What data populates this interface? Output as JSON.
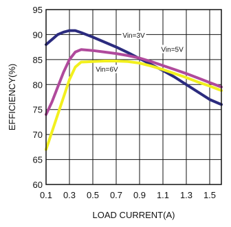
{
  "chart_data": {
    "type": "line",
    "title": "",
    "xlabel": "LOAD CURRENT(A)",
    "ylabel": "EFFICIENCY(%)",
    "xlim": [
      0.1,
      1.6
    ],
    "ylim": [
      60,
      95
    ],
    "xticks": [
      0.1,
      0.3,
      0.5,
      0.7,
      0.9,
      1.1,
      1.3,
      1.5
    ],
    "yticks": [
      60,
      65,
      70,
      75,
      80,
      85,
      90,
      95
    ],
    "grid": true,
    "series": [
      {
        "name": "Vin=3V",
        "color": "#2b2b7e",
        "points": [
          [
            0.1,
            88.0
          ],
          [
            0.15,
            89.0
          ],
          [
            0.2,
            90.0
          ],
          [
            0.25,
            90.5
          ],
          [
            0.3,
            90.8
          ],
          [
            0.35,
            90.8
          ],
          [
            0.4,
            90.4
          ],
          [
            0.5,
            89.5
          ],
          [
            0.6,
            88.5
          ],
          [
            0.7,
            87.5
          ],
          [
            0.8,
            86.4
          ],
          [
            0.9,
            85.2
          ],
          [
            1.0,
            84.0
          ],
          [
            1.1,
            82.8
          ],
          [
            1.2,
            81.5
          ],
          [
            1.3,
            80.0
          ],
          [
            1.4,
            78.5
          ],
          [
            1.5,
            77.0
          ],
          [
            1.6,
            76.0
          ]
        ]
      },
      {
        "name": "Vin=5V",
        "color": "#b04a9c",
        "points": [
          [
            0.1,
            74.0
          ],
          [
            0.15,
            76.5
          ],
          [
            0.2,
            79.5
          ],
          [
            0.25,
            82.5
          ],
          [
            0.3,
            85.0
          ],
          [
            0.35,
            86.5
          ],
          [
            0.4,
            87.0
          ],
          [
            0.5,
            86.8
          ],
          [
            0.6,
            86.5
          ],
          [
            0.7,
            86.2
          ],
          [
            0.8,
            85.8
          ],
          [
            0.9,
            85.3
          ],
          [
            1.0,
            84.6
          ],
          [
            1.1,
            83.8
          ],
          [
            1.2,
            83.0
          ],
          [
            1.3,
            82.2
          ],
          [
            1.4,
            81.3
          ],
          [
            1.5,
            80.4
          ],
          [
            1.6,
            79.5
          ]
        ]
      },
      {
        "name": "Vin=6V",
        "color": "#f2f01e",
        "points": [
          [
            0.1,
            67.0
          ],
          [
            0.15,
            70.5
          ],
          [
            0.2,
            74.0
          ],
          [
            0.25,
            77.5
          ],
          [
            0.3,
            81.0
          ],
          [
            0.35,
            83.5
          ],
          [
            0.4,
            84.5
          ],
          [
            0.5,
            84.6
          ],
          [
            0.6,
            84.7
          ],
          [
            0.7,
            84.7
          ],
          [
            0.8,
            84.6
          ],
          [
            0.9,
            84.3
          ],
          [
            1.0,
            83.7
          ],
          [
            1.1,
            83.0
          ],
          [
            1.2,
            82.2
          ],
          [
            1.3,
            81.4
          ],
          [
            1.4,
            80.5
          ],
          [
            1.5,
            79.7
          ],
          [
            1.6,
            78.8
          ]
        ]
      }
    ],
    "annotations": [
      {
        "text": "Vin=3V",
        "x": 0.85,
        "y": 89.5
      },
      {
        "text": "Vin=5V",
        "x": 1.18,
        "y": 86.7
      },
      {
        "text": "Vin=6V",
        "x": 0.62,
        "y": 82.7
      }
    ]
  }
}
